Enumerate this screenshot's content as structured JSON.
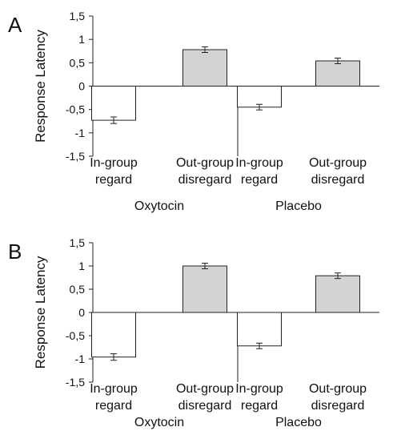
{
  "chart_data": [
    {
      "type": "bar",
      "panel_label": "A",
      "ylabel": "Response Latency",
      "ylim": [
        -1.5,
        1.5
      ],
      "yticks": [
        "1,5",
        "1",
        "0,5",
        "0",
        "-0,5",
        "-1",
        "-1,5"
      ],
      "groups": [
        "Oxytocin",
        "Placebo"
      ],
      "categories": [
        "In-group regard",
        "Out-group disregard",
        "In-group regard",
        "Out-group disregard"
      ],
      "category_lines": [
        [
          "In-group",
          "regard"
        ],
        [
          "Out-group",
          "disregard"
        ],
        [
          "In-group",
          "regard"
        ],
        [
          "Out-group",
          "disregard"
        ]
      ],
      "values": [
        -0.73,
        0.78,
        -0.45,
        0.54
      ],
      "errors": [
        0.07,
        0.06,
        0.06,
        0.06
      ],
      "bar_colors": [
        "#ffffff",
        "#d3d3d3",
        "#ffffff",
        "#d3d3d3"
      ]
    },
    {
      "type": "bar",
      "panel_label": "B",
      "ylabel": "Response Latency",
      "ylim": [
        -1.5,
        1.5
      ],
      "yticks": [
        "1,5",
        "1",
        "0,5",
        "0",
        "-0,5",
        "-1",
        "-1,5"
      ],
      "groups": [
        "Oxytocin",
        "Placebo"
      ],
      "categories": [
        "In-group regard",
        "Out-group disregard",
        "In-group regard",
        "Out-group disregard"
      ],
      "category_lines": [
        [
          "In-group",
          "regard"
        ],
        [
          "Out-group",
          "disregard"
        ],
        [
          "In-group",
          "regard"
        ],
        [
          "Out-group",
          "disregard"
        ]
      ],
      "values": [
        -0.96,
        1.0,
        -0.72,
        0.79
      ],
      "errors": [
        0.07,
        0.06,
        0.06,
        0.06
      ],
      "bar_colors": [
        "#ffffff",
        "#d3d3d3",
        "#ffffff",
        "#d3d3d3"
      ]
    }
  ]
}
